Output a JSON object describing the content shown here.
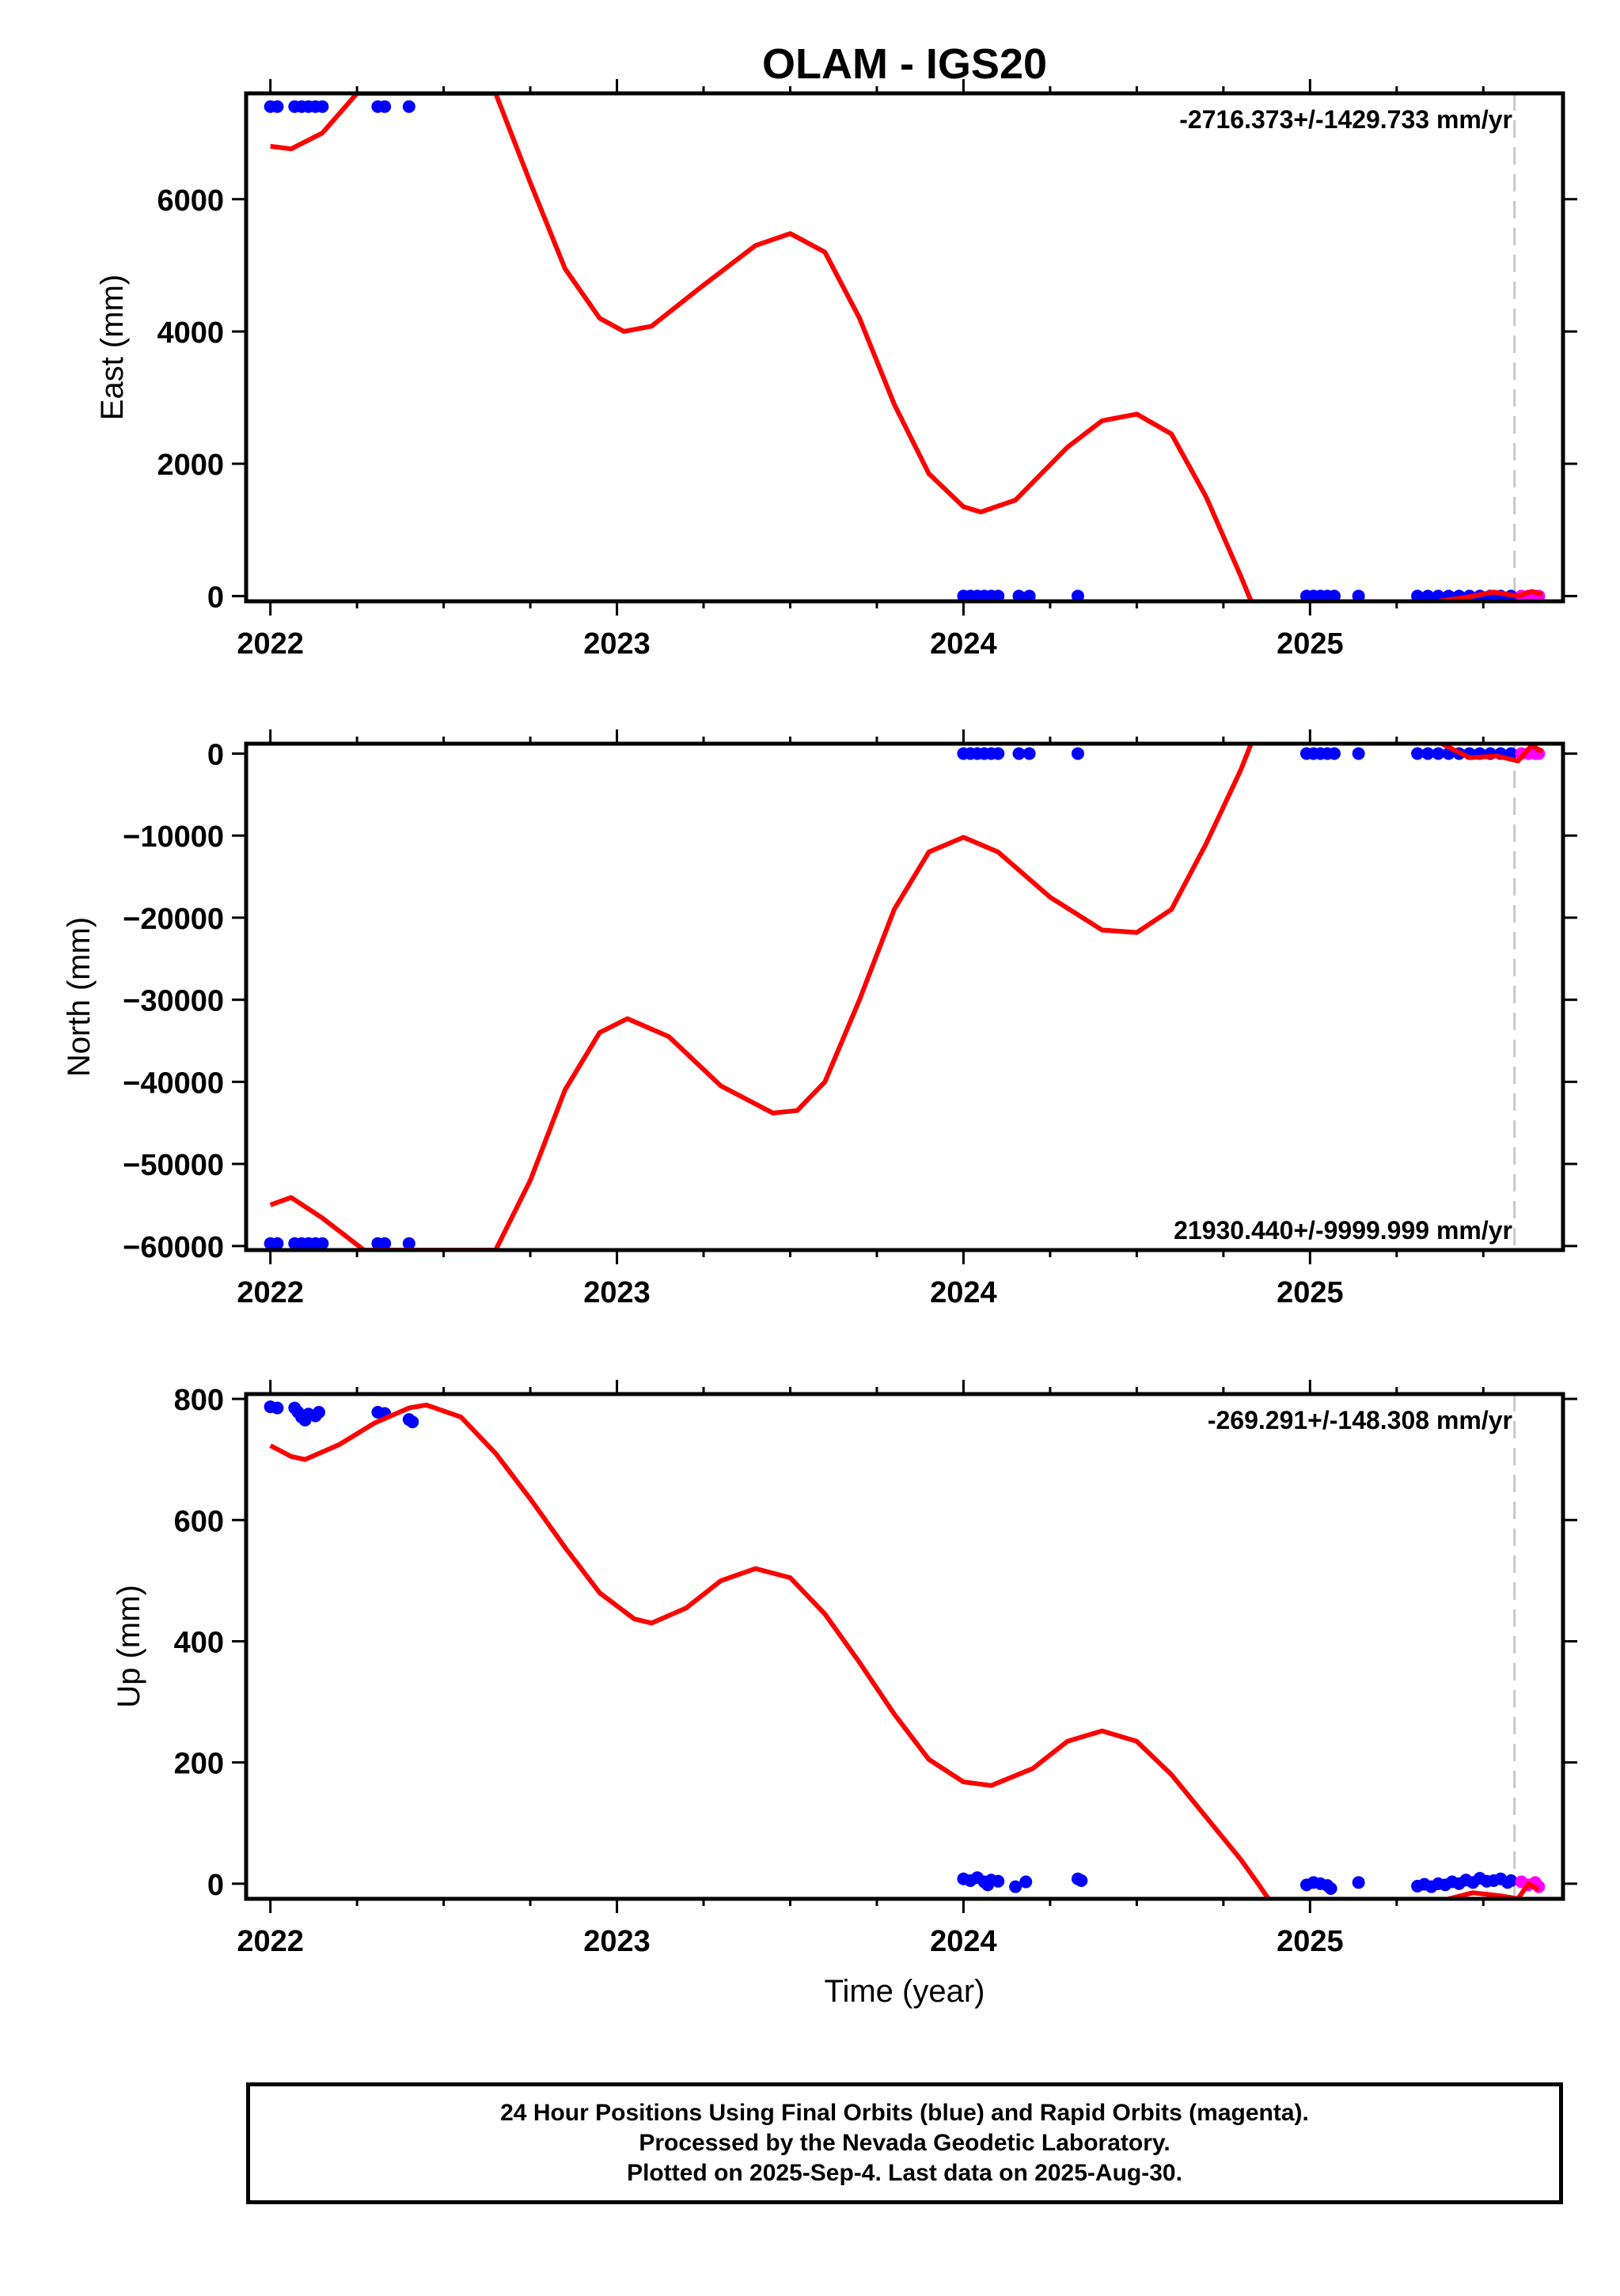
{
  "title": "OLAM - IGS20",
  "footer": {
    "line1": "24 Hour Positions Using Final Orbits (blue) and Rapid Orbits (magenta).",
    "line2": "Processed by the Nevada Geodetic Laboratory.",
    "line3": "Plotted on 2025-Sep-4. Last data on 2025-Aug-30."
  },
  "colors": {
    "final_orbits": "#0000ff",
    "rapid_orbits": "#ff00ff",
    "model_fit": "#ff0000",
    "last_data_line": "#c8c8c8"
  },
  "chart_data": [
    {
      "type": "scatter",
      "component": "east",
      "ylabel": "East (mm)",
      "xlabel": "",
      "xlim": [
        2021.93,
        2025.73
      ],
      "ylim": [
        -80,
        7600
      ],
      "xticks": [
        2022,
        2023,
        2024,
        2025
      ],
      "x_tick_labels": [
        "2022",
        "2023",
        "2024",
        "2025"
      ],
      "yticks": [
        0,
        2000,
        4000,
        6000
      ],
      "y_tick_labels": [
        "0",
        "2000",
        "4000",
        "6000"
      ],
      "rate_label": "-2716.373+/-1429.733 mm/yr",
      "rate_position": "top-right",
      "last_data_year": 2025.59,
      "final_orbits": [
        [
          2022.0,
          7400
        ],
        [
          2022.02,
          7400
        ],
        [
          2022.07,
          7400
        ],
        [
          2022.09,
          7400
        ],
        [
          2022.11,
          7400
        ],
        [
          2022.13,
          7400
        ],
        [
          2022.15,
          7400
        ],
        [
          2022.31,
          7400
        ],
        [
          2022.33,
          7400
        ],
        [
          2022.4,
          7400
        ],
        [
          2024.0,
          0
        ],
        [
          2024.02,
          0
        ],
        [
          2024.04,
          0
        ],
        [
          2024.06,
          0
        ],
        [
          2024.08,
          0
        ],
        [
          2024.1,
          0
        ],
        [
          2024.16,
          0
        ],
        [
          2024.19,
          0
        ],
        [
          2024.33,
          0
        ],
        [
          2024.99,
          0
        ],
        [
          2025.01,
          0
        ],
        [
          2025.03,
          0
        ],
        [
          2025.05,
          0
        ],
        [
          2025.07,
          0
        ],
        [
          2025.14,
          0
        ],
        [
          2025.31,
          0
        ],
        [
          2025.34,
          0
        ],
        [
          2025.37,
          0
        ],
        [
          2025.4,
          0
        ],
        [
          2025.43,
          0
        ],
        [
          2025.46,
          0
        ],
        [
          2025.49,
          0
        ],
        [
          2025.52,
          0
        ],
        [
          2025.55,
          0
        ],
        [
          2025.58,
          0
        ]
      ],
      "rapid_orbits": [
        [
          2025.61,
          0
        ],
        [
          2025.63,
          0
        ],
        [
          2025.65,
          0
        ],
        [
          2025.66,
          0
        ]
      ],
      "model_fit": [
        [
          2022.0,
          6800
        ],
        [
          2022.06,
          6760
        ],
        [
          2022.15,
          7000
        ],
        [
          2022.25,
          7600
        ],
        [
          2022.65,
          7600
        ],
        [
          2022.75,
          6250
        ],
        [
          2022.85,
          4950
        ],
        [
          2022.95,
          4200
        ],
        [
          2023.02,
          4000
        ],
        [
          2023.1,
          4080
        ],
        [
          2023.25,
          4700
        ],
        [
          2023.4,
          5300
        ],
        [
          2023.5,
          5480
        ],
        [
          2023.6,
          5200
        ],
        [
          2023.7,
          4200
        ],
        [
          2023.8,
          2900
        ],
        [
          2023.9,
          1850
        ],
        [
          2024.0,
          1350
        ],
        [
          2024.05,
          1270
        ],
        [
          2024.15,
          1450
        ],
        [
          2024.3,
          2250
        ],
        [
          2024.4,
          2650
        ],
        [
          2024.5,
          2750
        ],
        [
          2024.6,
          2450
        ],
        [
          2024.7,
          1500
        ],
        [
          2024.8,
          300
        ],
        [
          2024.83,
          -80
        ]
      ],
      "model_fit_tail": [
        [
          2025.37,
          -80
        ],
        [
          2025.45,
          -20
        ],
        [
          2025.53,
          60
        ],
        [
          2025.6,
          0
        ],
        [
          2025.64,
          70
        ],
        [
          2025.67,
          20
        ]
      ]
    },
    {
      "type": "scatter",
      "component": "north",
      "ylabel": "North (mm)",
      "xlabel": "",
      "xlim": [
        2021.93,
        2025.73
      ],
      "ylim": [
        -60500,
        1200
      ],
      "xticks": [
        2022,
        2023,
        2024,
        2025
      ],
      "x_tick_labels": [
        "2022",
        "2023",
        "2024",
        "2025"
      ],
      "yticks": [
        0,
        -10000,
        -20000,
        -30000,
        -40000,
        -50000,
        -60000
      ],
      "y_tick_labels": [
        "0",
        "−10000",
        "−20000",
        "−30000",
        "−40000",
        "−50000",
        "−60000"
      ],
      "rate_label": "21930.440+/-9999.999 mm/yr",
      "rate_position": "bottom-right",
      "last_data_year": 2025.59,
      "final_orbits": [
        [
          2022.0,
          -59700
        ],
        [
          2022.02,
          -59700
        ],
        [
          2022.07,
          -59700
        ],
        [
          2022.09,
          -59700
        ],
        [
          2022.11,
          -59700
        ],
        [
          2022.13,
          -59700
        ],
        [
          2022.15,
          -59700
        ],
        [
          2022.31,
          -59700
        ],
        [
          2022.33,
          -59700
        ],
        [
          2022.4,
          -59700
        ],
        [
          2024.0,
          0
        ],
        [
          2024.02,
          0
        ],
        [
          2024.04,
          0
        ],
        [
          2024.06,
          0
        ],
        [
          2024.08,
          0
        ],
        [
          2024.1,
          0
        ],
        [
          2024.16,
          0
        ],
        [
          2024.19,
          0
        ],
        [
          2024.33,
          0
        ],
        [
          2024.99,
          0
        ],
        [
          2025.01,
          0
        ],
        [
          2025.03,
          0
        ],
        [
          2025.05,
          0
        ],
        [
          2025.07,
          0
        ],
        [
          2025.14,
          0
        ],
        [
          2025.31,
          0
        ],
        [
          2025.34,
          0
        ],
        [
          2025.37,
          0
        ],
        [
          2025.4,
          0
        ],
        [
          2025.43,
          0
        ],
        [
          2025.46,
          0
        ],
        [
          2025.49,
          0
        ],
        [
          2025.52,
          0
        ],
        [
          2025.55,
          0
        ],
        [
          2025.58,
          0
        ]
      ],
      "rapid_orbits": [
        [
          2025.61,
          0
        ],
        [
          2025.63,
          0
        ],
        [
          2025.65,
          0
        ],
        [
          2025.66,
          0
        ]
      ],
      "model_fit": [
        [
          2022.0,
          -55000
        ],
        [
          2022.06,
          -54100
        ],
        [
          2022.15,
          -56600
        ],
        [
          2022.27,
          -60500
        ],
        [
          2022.65,
          -60500
        ],
        [
          2022.75,
          -52000
        ],
        [
          2022.85,
          -41000
        ],
        [
          2022.95,
          -34000
        ],
        [
          2023.03,
          -32300
        ],
        [
          2023.15,
          -34500
        ],
        [
          2023.3,
          -40500
        ],
        [
          2023.45,
          -43800
        ],
        [
          2023.52,
          -43500
        ],
        [
          2023.6,
          -40000
        ],
        [
          2023.7,
          -30000
        ],
        [
          2023.8,
          -19000
        ],
        [
          2023.9,
          -12000
        ],
        [
          2024.0,
          -10200
        ],
        [
          2024.1,
          -12000
        ],
        [
          2024.25,
          -17500
        ],
        [
          2024.4,
          -21500
        ],
        [
          2024.5,
          -21800
        ],
        [
          2024.6,
          -19000
        ],
        [
          2024.7,
          -11000
        ],
        [
          2024.8,
          -2000
        ],
        [
          2024.83,
          1200
        ]
      ],
      "model_fit_tail": [
        [
          2025.38,
          1200
        ],
        [
          2025.46,
          -500
        ],
        [
          2025.54,
          -300
        ],
        [
          2025.6,
          -900
        ],
        [
          2025.64,
          1000
        ],
        [
          2025.67,
          200
        ]
      ]
    },
    {
      "type": "scatter",
      "component": "up",
      "ylabel": "Up (mm)",
      "xlabel": "Time (year)",
      "xlim": [
        2021.93,
        2025.73
      ],
      "ylim": [
        -25,
        808
      ],
      "xticks": [
        2022,
        2023,
        2024,
        2025
      ],
      "x_tick_labels": [
        "2022",
        "2023",
        "2024",
        "2025"
      ],
      "yticks": [
        0,
        200,
        400,
        600,
        800
      ],
      "y_tick_labels": [
        "0",
        "200",
        "400",
        "600",
        "800"
      ],
      "rate_label": "-269.291+/-148.308 mm/yr",
      "rate_position": "top-right",
      "last_data_year": 2025.59,
      "final_orbits": [
        [
          2022.0,
          787
        ],
        [
          2022.02,
          785
        ],
        [
          2022.07,
          785
        ],
        [
          2022.08,
          778
        ],
        [
          2022.09,
          770
        ],
        [
          2022.1,
          765
        ],
        [
          2022.11,
          775
        ],
        [
          2022.13,
          772
        ],
        [
          2022.14,
          778
        ],
        [
          2022.31,
          778
        ],
        [
          2022.33,
          776
        ],
        [
          2022.4,
          766
        ],
        [
          2022.41,
          762
        ],
        [
          2024.0,
          8
        ],
        [
          2024.02,
          5
        ],
        [
          2024.04,
          10
        ],
        [
          2024.06,
          3
        ],
        [
          2024.07,
          -2
        ],
        [
          2024.08,
          6
        ],
        [
          2024.1,
          4
        ],
        [
          2024.15,
          -5
        ],
        [
          2024.18,
          3
        ],
        [
          2024.33,
          8
        ],
        [
          2024.34,
          5
        ],
        [
          2024.99,
          -2
        ],
        [
          2025.01,
          2
        ],
        [
          2025.03,
          0
        ],
        [
          2025.05,
          -3
        ],
        [
          2025.06,
          -8
        ],
        [
          2025.14,
          2
        ],
        [
          2025.31,
          -4
        ],
        [
          2025.33,
          -1
        ],
        [
          2025.35,
          -5
        ],
        [
          2025.37,
          0
        ],
        [
          2025.39,
          -2
        ],
        [
          2025.41,
          3
        ],
        [
          2025.43,
          0
        ],
        [
          2025.45,
          6
        ],
        [
          2025.47,
          2
        ],
        [
          2025.49,
          9
        ],
        [
          2025.51,
          4
        ],
        [
          2025.53,
          5
        ],
        [
          2025.55,
          8
        ],
        [
          2025.57,
          2
        ],
        [
          2025.58,
          5
        ]
      ],
      "rapid_orbits": [
        [
          2025.61,
          3
        ],
        [
          2025.63,
          -2
        ],
        [
          2025.65,
          2
        ],
        [
          2025.66,
          -5
        ]
      ],
      "model_fit": [
        [
          2022.0,
          723
        ],
        [
          2022.06,
          705
        ],
        [
          2022.1,
          700
        ],
        [
          2022.2,
          725
        ],
        [
          2022.3,
          760
        ],
        [
          2022.4,
          785
        ],
        [
          2022.45,
          790
        ],
        [
          2022.55,
          770
        ],
        [
          2022.65,
          710
        ],
        [
          2022.75,
          635
        ],
        [
          2022.85,
          555
        ],
        [
          2022.95,
          480
        ],
        [
          2023.05,
          437
        ],
        [
          2023.1,
          430
        ],
        [
          2023.2,
          455
        ],
        [
          2023.3,
          500
        ],
        [
          2023.4,
          520
        ],
        [
          2023.5,
          505
        ],
        [
          2023.6,
          445
        ],
        [
          2023.7,
          365
        ],
        [
          2023.8,
          280
        ],
        [
          2023.9,
          205
        ],
        [
          2024.0,
          168
        ],
        [
          2024.08,
          162
        ],
        [
          2024.2,
          190
        ],
        [
          2024.3,
          235
        ],
        [
          2024.4,
          252
        ],
        [
          2024.5,
          235
        ],
        [
          2024.6,
          180
        ],
        [
          2024.7,
          110
        ],
        [
          2024.8,
          40
        ],
        [
          2024.85,
          0
        ],
        [
          2024.88,
          -25
        ]
      ],
      "model_fit_tail": [
        [
          2025.4,
          -25
        ],
        [
          2025.47,
          -15
        ],
        [
          2025.55,
          -20
        ],
        [
          2025.6,
          -25
        ],
        [
          2025.63,
          0
        ],
        [
          2025.66,
          -10
        ]
      ]
    }
  ]
}
